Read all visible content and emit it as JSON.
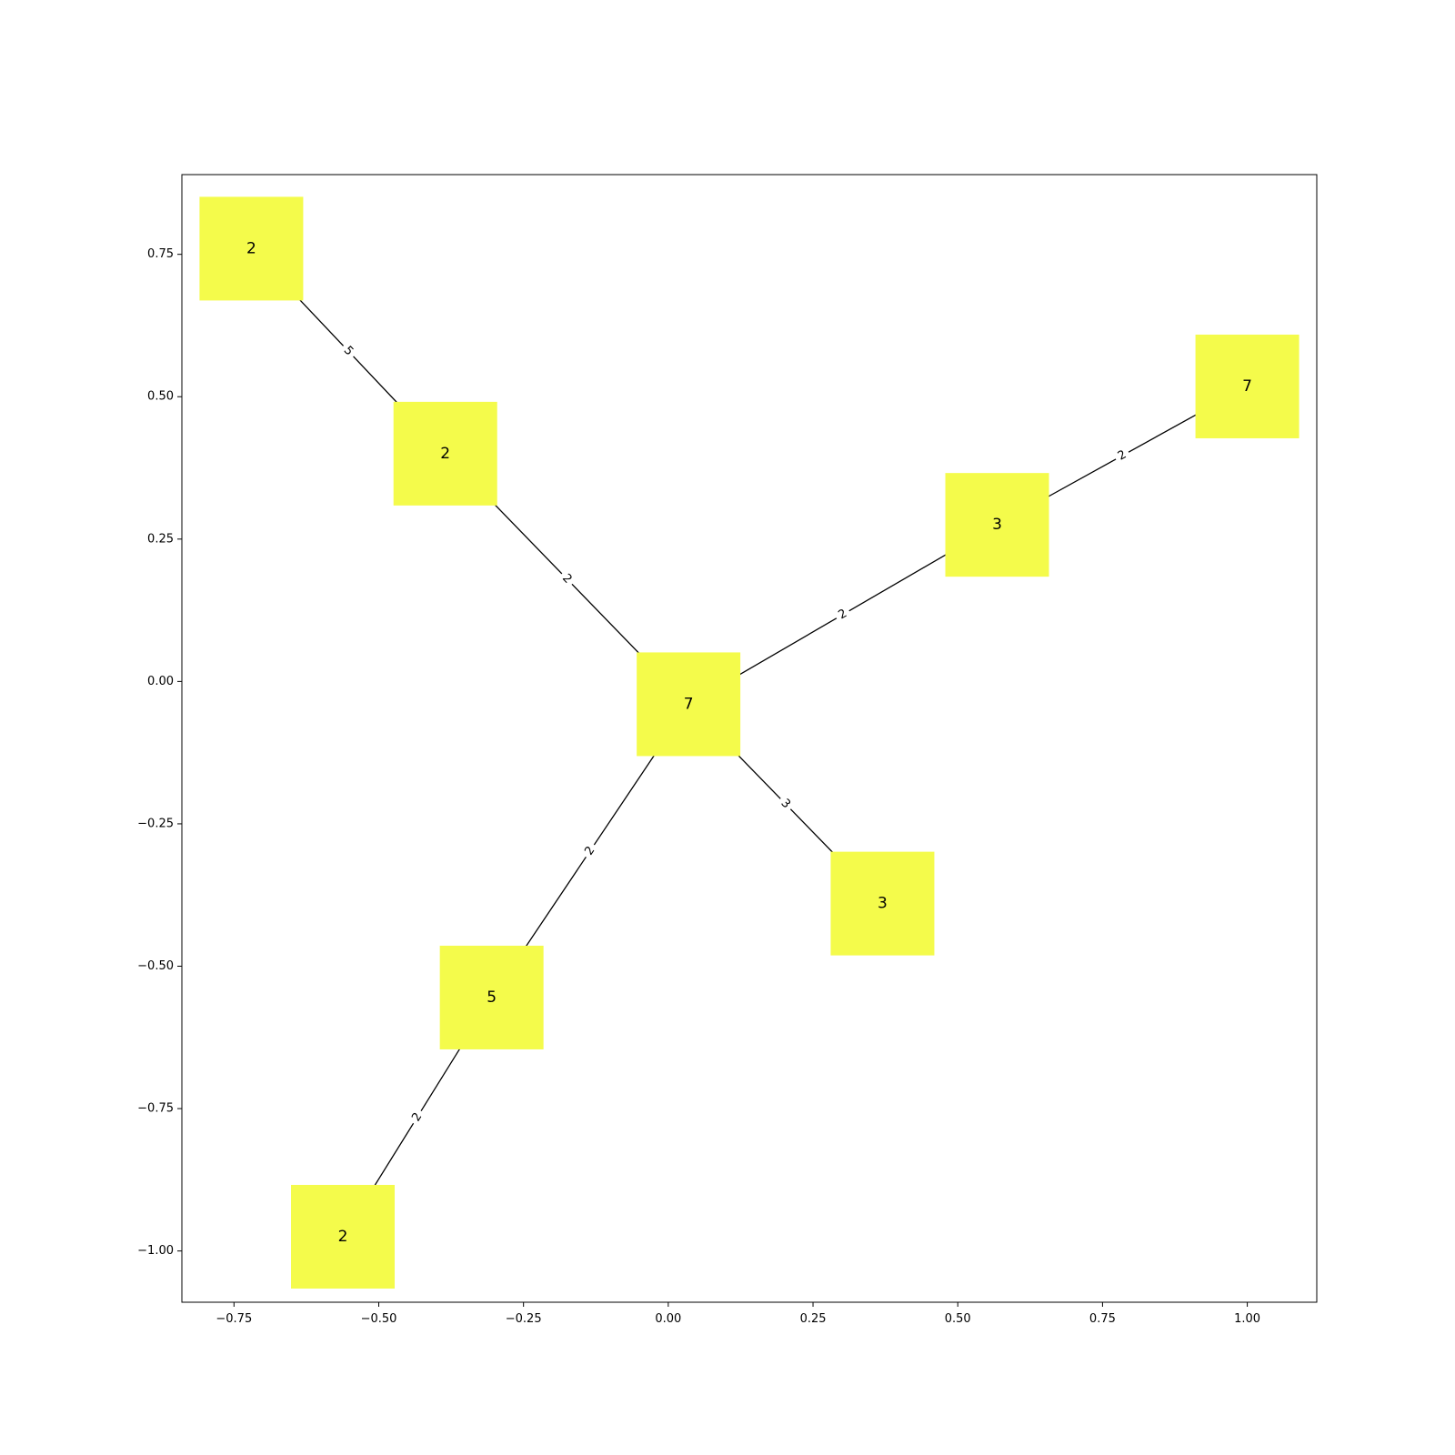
{
  "chart_data": {
    "type": "network",
    "node_color": "#f4fb4b",
    "edge_color": "#000000",
    "xlim": [
      -0.84,
      1.12
    ],
    "ylim": [
      -1.09,
      0.89
    ],
    "xticks": [
      -0.75,
      -0.5,
      -0.25,
      0.0,
      0.25,
      0.5,
      0.75,
      1.0
    ],
    "xtick_labels": [
      "−0.75",
      "−0.50",
      "−0.25",
      "0.00",
      "0.25",
      "0.50",
      "0.75",
      "1.00"
    ],
    "yticks": [
      0.75,
      0.5,
      0.25,
      0.0,
      -0.25,
      -0.5,
      -0.75,
      -1.0
    ],
    "ytick_labels": [
      "0.75",
      "0.50",
      "0.25",
      "0.00",
      "−0.25",
      "−0.50",
      "−0.75",
      "−1.00"
    ],
    "nodes": [
      {
        "id": "a",
        "label": "2",
        "x": -0.72,
        "y": 0.76
      },
      {
        "id": "b",
        "label": "2",
        "x": -0.385,
        "y": 0.4
      },
      {
        "id": "c",
        "label": "7",
        "x": 0.035,
        "y": -0.04
      },
      {
        "id": "d",
        "label": "3",
        "x": 0.568,
        "y": 0.275
      },
      {
        "id": "e",
        "label": "7",
        "x": 1.0,
        "y": 0.518
      },
      {
        "id": "f",
        "label": "3",
        "x": 0.37,
        "y": -0.39
      },
      {
        "id": "g",
        "label": "5",
        "x": -0.305,
        "y": -0.555
      },
      {
        "id": "h",
        "label": "2",
        "x": -0.562,
        "y": -0.975
      }
    ],
    "edges": [
      {
        "source": "a",
        "target": "b",
        "label": "5"
      },
      {
        "source": "b",
        "target": "c",
        "label": "2"
      },
      {
        "source": "c",
        "target": "d",
        "label": "2"
      },
      {
        "source": "d",
        "target": "e",
        "label": "2"
      },
      {
        "source": "c",
        "target": "f",
        "label": "3"
      },
      {
        "source": "c",
        "target": "g",
        "label": "2"
      },
      {
        "source": "g",
        "target": "h",
        "label": "2"
      }
    ]
  }
}
